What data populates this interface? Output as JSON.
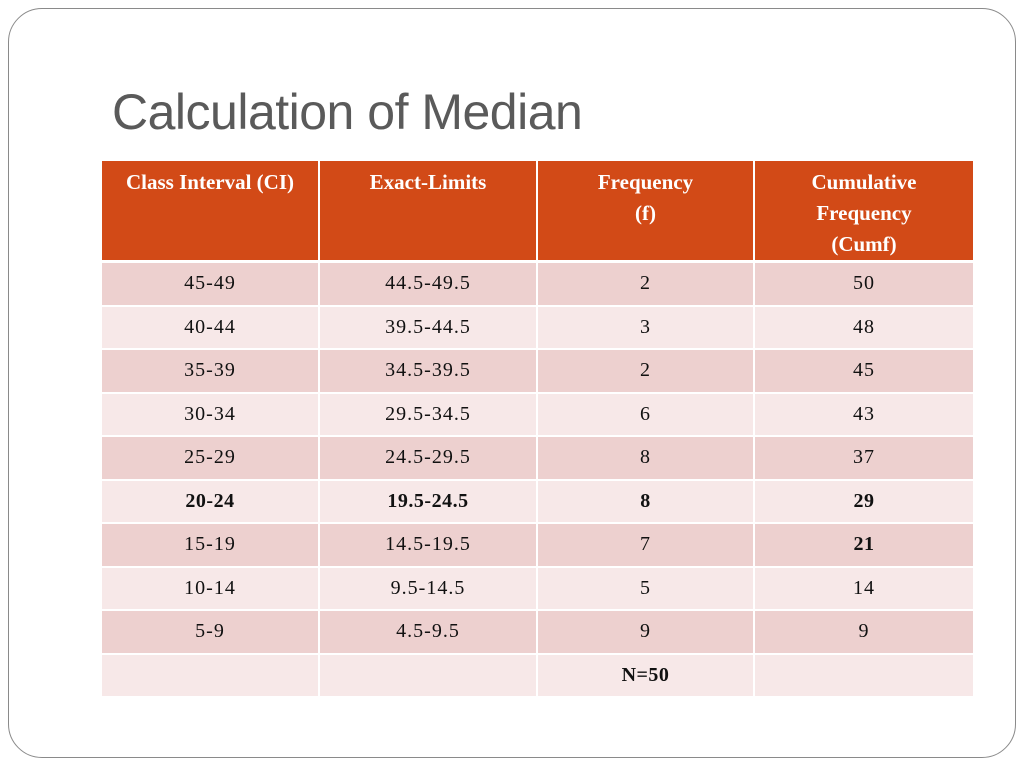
{
  "title": "Calculation of Median",
  "table": {
    "headers": {
      "class_interval": [
        "Class Interval (CI)"
      ],
      "exact_limits": [
        "Exact-Limits"
      ],
      "frequency": [
        "Frequency",
        "(f)"
      ],
      "cumulative": [
        "Cumulative",
        "Frequency",
        "(Cumf)"
      ]
    },
    "rows": [
      {
        "ci": "45-49",
        "limits": "44.5-49.5",
        "f": "2",
        "cumf": "50"
      },
      {
        "ci": "40-44",
        "limits": "39.5-44.5",
        "f": "3",
        "cumf": "48"
      },
      {
        "ci": "35-39",
        "limits": "34.5-39.5",
        "f": "2",
        "cumf": "45"
      },
      {
        "ci": "30-34",
        "limits": "29.5-34.5",
        "f": "6",
        "cumf": "43"
      },
      {
        "ci": "25-29",
        "limits": "24.5-29.5",
        "f": "8",
        "cumf": "37"
      },
      {
        "ci": "20-24",
        "limits": "19.5-24.5",
        "f": "8",
        "cumf": "29"
      },
      {
        "ci": "15-19",
        "limits": "14.5-19.5",
        "f": "7",
        "cumf": "21"
      },
      {
        "ci": "10-14",
        "limits": "9.5-14.5",
        "f": "5",
        "cumf": "14"
      },
      {
        "ci": "5-9",
        "limits": "4.5-9.5",
        "f": "9",
        "cumf": "9"
      }
    ],
    "total": {
      "ci": "",
      "limits": "",
      "f": "N=50",
      "cumf": ""
    }
  },
  "colors": {
    "header_bg": "#d24a17",
    "row_odd": "#edd0cf",
    "row_even": "#f7e8e8",
    "title": "#5a5a5a"
  }
}
